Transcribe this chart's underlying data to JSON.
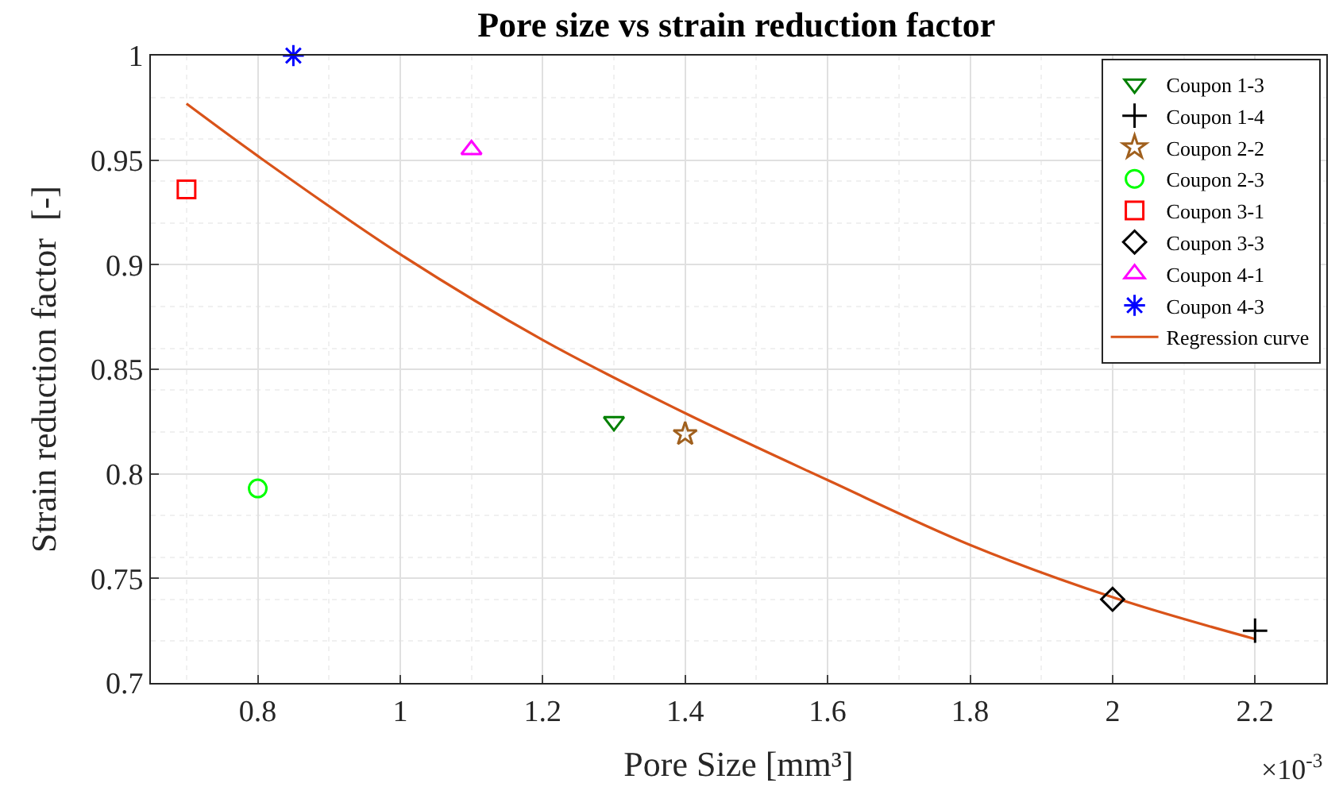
{
  "chart_data": {
    "type": "scatter",
    "title": "Pore size vs strain reduction factor",
    "xlabel": "Pore Size [mm³]",
    "ylabel": "Strain reduction factor  [-]",
    "annotations": [
      "×10$^{-3}$"
    ],
    "series": [
      {
        "name": "Coupon 1-3",
        "color": "#007f00",
        "marker": "triangle",
        "x": [
          1.3
        ],
        "values": [
          0.825
        ]
      },
      {
        "name": "Coupon 1-4",
        "color": "#000000",
        "marker": "cross",
        "x": [
          2.2
        ],
        "values": [
          0.725
        ]
      },
      {
        "name": "Coupon 2-2",
        "color": "#a0601e",
        "marker": "star",
        "x": [
          1.4
        ],
        "values": [
          0.819
        ]
      },
      {
        "name": "Coupon 2-3",
        "color": "#00ff00",
        "marker": "circle",
        "x": [
          0.8
        ],
        "values": [
          0.793
        ]
      },
      {
        "name": "Coupon 3-1",
        "color": "#ff0000",
        "marker": "square",
        "x": [
          0.7
        ],
        "values": [
          0.936
        ]
      },
      {
        "name": "Coupon 3-3",
        "color": "#000000",
        "marker": "diamond",
        "x": [
          2.0
        ],
        "values": [
          0.74
        ]
      },
      {
        "name": "Coupon 4-1",
        "color": "#ff00ff",
        "marker": "triangle",
        "x": [
          1.1
        ],
        "values": [
          0.955
        ]
      },
      {
        "name": "Coupon 4-3",
        "color": "#0000ff",
        "marker": "cross",
        "x": [
          0.85
        ],
        "values": [
          1.0
        ]
      },
      {
        "name": "Regression curve",
        "type": "line",
        "color": "#d95319",
        "marker": "none",
        "x": [
          0.7,
          0.8,
          1.0,
          1.2,
          1.4,
          1.6,
          1.8,
          2.0,
          2.2
        ],
        "values": [
          0.977,
          0.952,
          0.905,
          0.864,
          0.829,
          0.797,
          0.766,
          0.741,
          0.721
        ]
      }
    ],
    "xlim": [
      0.65,
      2.3
    ],
    "xticks": [
      0.8,
      1,
      1.2,
      1.4,
      1.6,
      1.8,
      2,
      2.2
    ],
    "ylim": [
      0.7,
      1.0
    ],
    "yticks": [
      0.7,
      0.75,
      0.8,
      0.85,
      0.9,
      0.95,
      1
    ],
    "grid": true,
    "legend": "top right"
  }
}
